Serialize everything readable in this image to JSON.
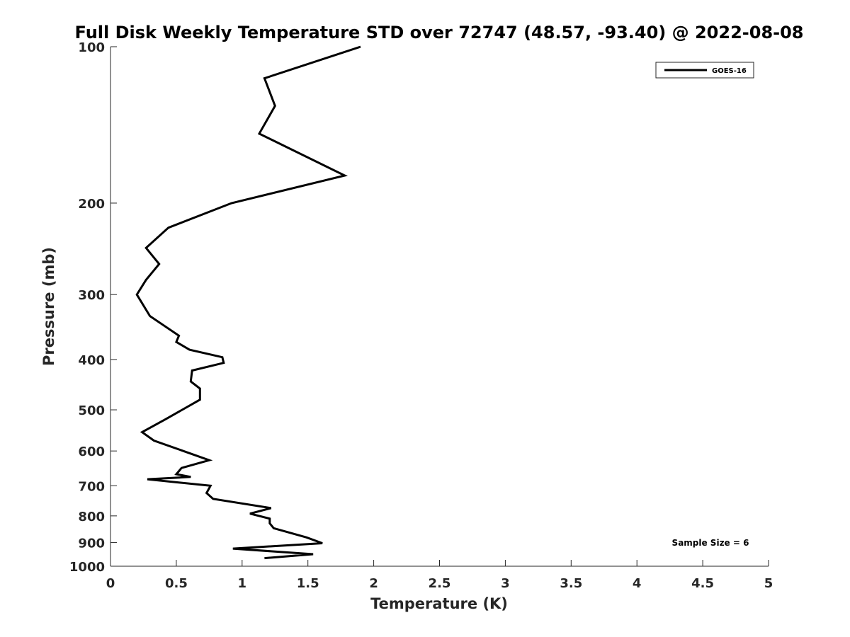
{
  "chart_data": {
    "type": "line",
    "title": "Full Disk Weekly Temperature STD over 72747 (48.57, -93.40) @ 2022-08-08",
    "xlabel": "Temperature (K)",
    "ylabel": "Pressure (mb)",
    "xlim": [
      0,
      5
    ],
    "ylim": [
      100,
      1000
    ],
    "y_scale": "log",
    "y_reversed": true,
    "grid": false,
    "legend_position": "top-right",
    "x_ticks": [
      0,
      0.5,
      1,
      1.5,
      2,
      2.5,
      3,
      3.5,
      4,
      4.5,
      5
    ],
    "x_tick_labels": [
      "0",
      "0.5",
      "1",
      "1.5",
      "2",
      "2.5",
      "3",
      "3.5",
      "4",
      "4.5",
      "5"
    ],
    "y_ticks": [
      100,
      200,
      300,
      400,
      500,
      600,
      700,
      800,
      900,
      1000
    ],
    "y_tick_labels": [
      "100",
      "200",
      "300",
      "400",
      "500",
      "600",
      "700",
      "800",
      "900",
      "1000"
    ],
    "annotation": "Sample Size = 6",
    "series": [
      {
        "name": "GOES-16",
        "color": "#000000",
        "x": [
          1.9,
          1.17,
          1.25,
          1.13,
          1.78,
          0.92,
          0.44,
          0.27,
          0.37,
          0.27,
          0.2,
          0.3,
          0.52,
          0.5,
          0.6,
          0.85,
          0.86,
          0.62,
          0.61,
          0.68,
          0.68,
          0.42,
          0.24,
          0.33,
          0.61,
          0.75,
          0.54,
          0.5,
          0.61,
          0.28,
          0.76,
          0.73,
          0.78,
          1.22,
          1.06,
          1.21,
          1.21,
          1.24,
          1.49,
          1.61,
          0.93,
          1.54,
          1.17
        ],
        "y": [
          100,
          115,
          130,
          147,
          177,
          200,
          223,
          244,
          262,
          281,
          300,
          330,
          360,
          370,
          383,
          396,
          406,
          420,
          441,
          455,
          478,
          521,
          552,
          573,
          607,
          625,
          647,
          665,
          673,
          680,
          700,
          723,
          742,
          773,
          792,
          810,
          827,
          845,
          880,
          903,
          925,
          948,
          965
        ]
      }
    ]
  }
}
